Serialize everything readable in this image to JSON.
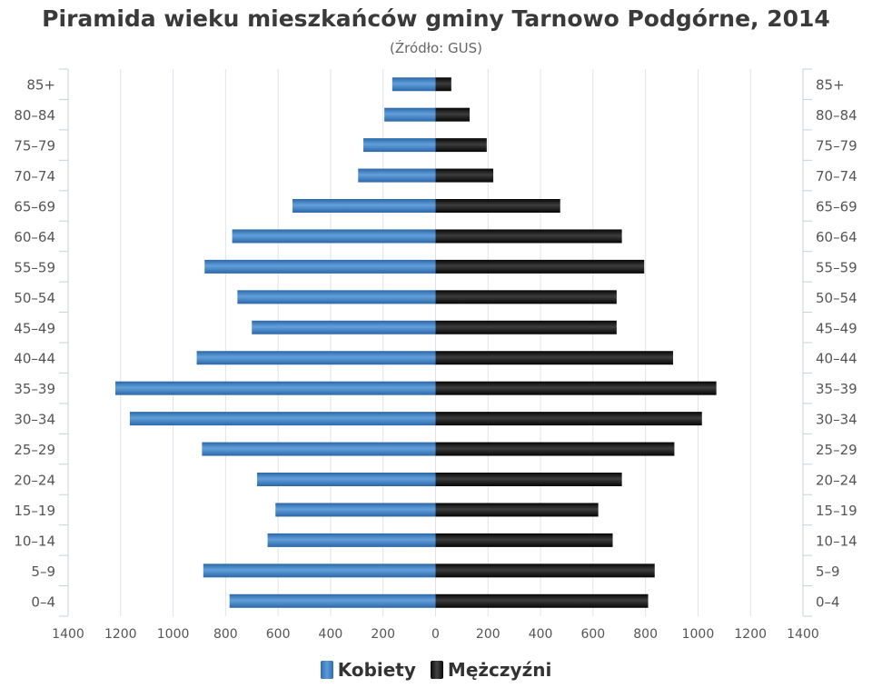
{
  "chart": {
    "title": "Piramida wieku mieszkańców gminy Tarnowo Podgórne, 2014",
    "subtitle": "(Źródło: GUS)"
  },
  "legend": {
    "female_label": "Kobiety",
    "male_label": "Mężczyźni"
  },
  "colors": {
    "female": "#3a7bc0",
    "male": "#111111",
    "grid": "#dde3ea",
    "axis_text": "#555555"
  },
  "chart_data": {
    "type": "bar",
    "orientation": "horizontal-pyramid",
    "title": "Piramida wieku mieszkańców gminy Tarnowo Podgórne, 2014",
    "subtitle": "(Źródło: GUS)",
    "categories": [
      "85+",
      "80–84",
      "75–79",
      "70–74",
      "65–69",
      "60–64",
      "55–59",
      "50–54",
      "45–49",
      "40–44",
      "35–39",
      "30–34",
      "25–29",
      "20–24",
      "15–19",
      "10–14",
      "5–9",
      "0–4"
    ],
    "series": [
      {
        "name": "Kobiety",
        "side": "left",
        "values": [
          165,
          195,
          275,
          295,
          545,
          775,
          880,
          755,
          700,
          910,
          1220,
          1165,
          890,
          680,
          610,
          640,
          885,
          785
        ]
      },
      {
        "name": "Mężczyźni",
        "side": "right",
        "values": [
          60,
          130,
          195,
          220,
          475,
          710,
          795,
          690,
          690,
          905,
          1070,
          1015,
          910,
          710,
          620,
          675,
          835,
          810
        ]
      }
    ],
    "x_ticks": [
      "1400",
      "1200",
      "1000",
      "800",
      "600",
      "400",
      "200",
      "0",
      "200",
      "400",
      "600",
      "800",
      "1000",
      "1200",
      "1400"
    ],
    "xlim": [
      -1400,
      1400
    ],
    "grid": true,
    "legend_position": "bottom-center"
  }
}
